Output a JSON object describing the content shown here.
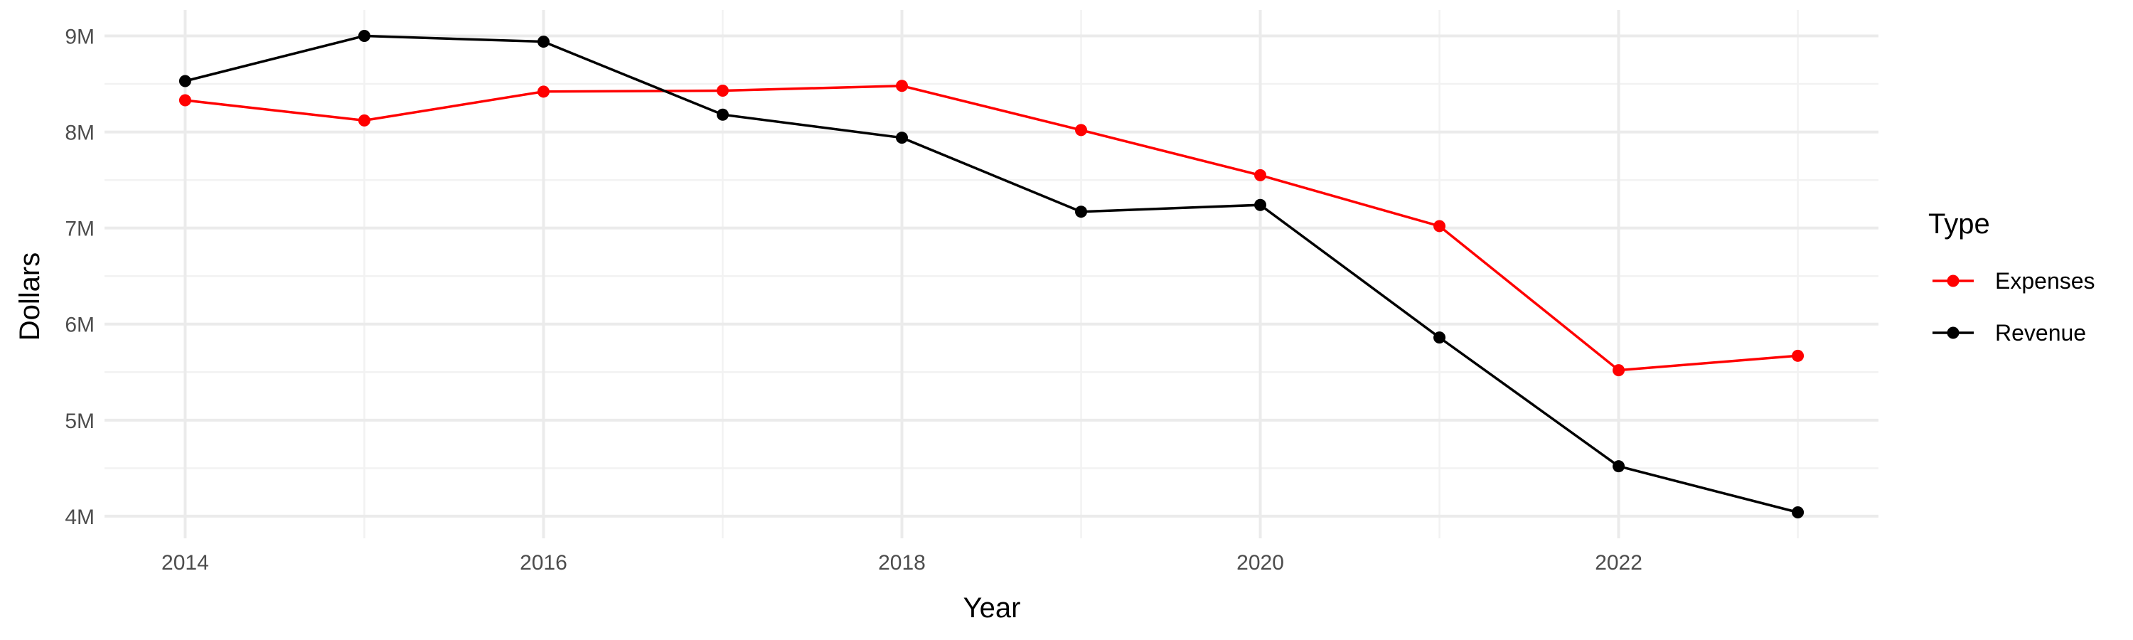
{
  "chart_data": {
    "type": "line",
    "title": "",
    "xlabel": "Year",
    "ylabel": "Dollars",
    "x": [
      2014,
      2015,
      2016,
      2017,
      2018,
      2019,
      2020,
      2021,
      2022,
      2023
    ],
    "xlim": [
      2013.55,
      2023.45
    ],
    "ylim": [
      3.77,
      9.27
    ],
    "x_ticks": [
      2014,
      2016,
      2018,
      2020,
      2022
    ],
    "x_tick_labels": [
      "2014",
      "2016",
      "2018",
      "2020",
      "2022"
    ],
    "y_ticks": [
      4,
      5,
      6,
      7,
      8,
      9
    ],
    "y_tick_labels": [
      "4M",
      "5M",
      "6M",
      "7M",
      "8M",
      "9M"
    ],
    "y_unit": "millions of dollars",
    "grid": true,
    "legend": {
      "title": "Type",
      "position": "right"
    },
    "series": [
      {
        "name": "Expenses",
        "color": "#ff0000",
        "values": [
          8.33,
          8.12,
          8.42,
          8.43,
          8.48,
          8.02,
          7.55,
          7.02,
          5.52,
          5.67
        ]
      },
      {
        "name": "Revenue",
        "color": "#000000",
        "values": [
          8.53,
          9.0,
          8.94,
          8.18,
          7.94,
          7.17,
          7.24,
          5.86,
          4.52,
          4.04
        ]
      }
    ]
  }
}
